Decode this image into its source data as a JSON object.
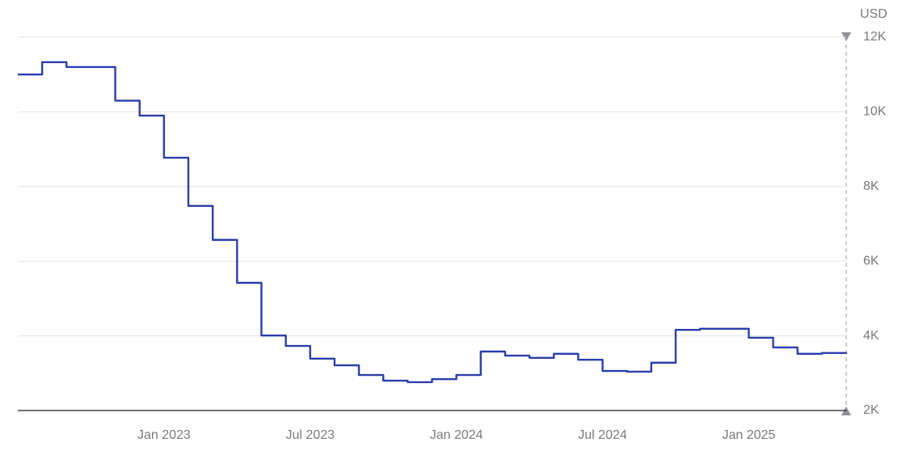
{
  "chart_data": {
    "type": "step-line",
    "y_axis_label": "USD",
    "x": [
      "2022-07",
      "2022-08",
      "2022-09",
      "2022-10",
      "2022-11",
      "2022-12",
      "2023-01",
      "2023-02",
      "2023-03",
      "2023-04",
      "2023-05",
      "2023-06",
      "2023-07",
      "2023-08",
      "2023-09",
      "2023-10",
      "2023-11",
      "2023-12",
      "2024-01",
      "2024-02",
      "2024-03",
      "2024-04",
      "2024-05",
      "2024-06",
      "2024-07",
      "2024-08",
      "2024-09",
      "2024-10",
      "2024-11",
      "2024-12",
      "2025-01",
      "2025-02",
      "2025-03",
      "2025-04",
      "2025-05"
    ],
    "series": [
      {
        "color": "#2a3eaa",
        "values": [
          11000,
          11330,
          11200,
          11200,
          10300,
          9900,
          8770,
          7480,
          6570,
          5420,
          4010,
          3730,
          3390,
          3210,
          2950,
          2800,
          2760,
          2840,
          2950,
          3580,
          3470,
          3410,
          3520,
          3360,
          3060,
          3040,
          3280,
          4160,
          4190,
          4190,
          3950,
          3690,
          3520,
          3540,
          3520
        ]
      }
    ],
    "xlim": [
      "2022-07",
      "2025-05"
    ],
    "xticks": [
      {
        "value": "2023-01",
        "label": "Jan 2023"
      },
      {
        "value": "2023-07",
        "label": "Jul 2023"
      },
      {
        "value": "2024-01",
        "label": "Jan 2024"
      },
      {
        "value": "2024-07",
        "label": "Jul 2024"
      },
      {
        "value": "2025-01",
        "label": "Jan 2025"
      }
    ],
    "ylim": [
      2000,
      12000
    ],
    "yticks": [
      {
        "value": 2000,
        "label": "2K"
      },
      {
        "value": 4000,
        "label": "4K"
      },
      {
        "value": 6000,
        "label": "6K"
      },
      {
        "value": 8000,
        "label": "8K"
      },
      {
        "value": 10000,
        "label": "10K"
      },
      {
        "value": 12000,
        "label": "12K"
      }
    ],
    "grid": true
  }
}
